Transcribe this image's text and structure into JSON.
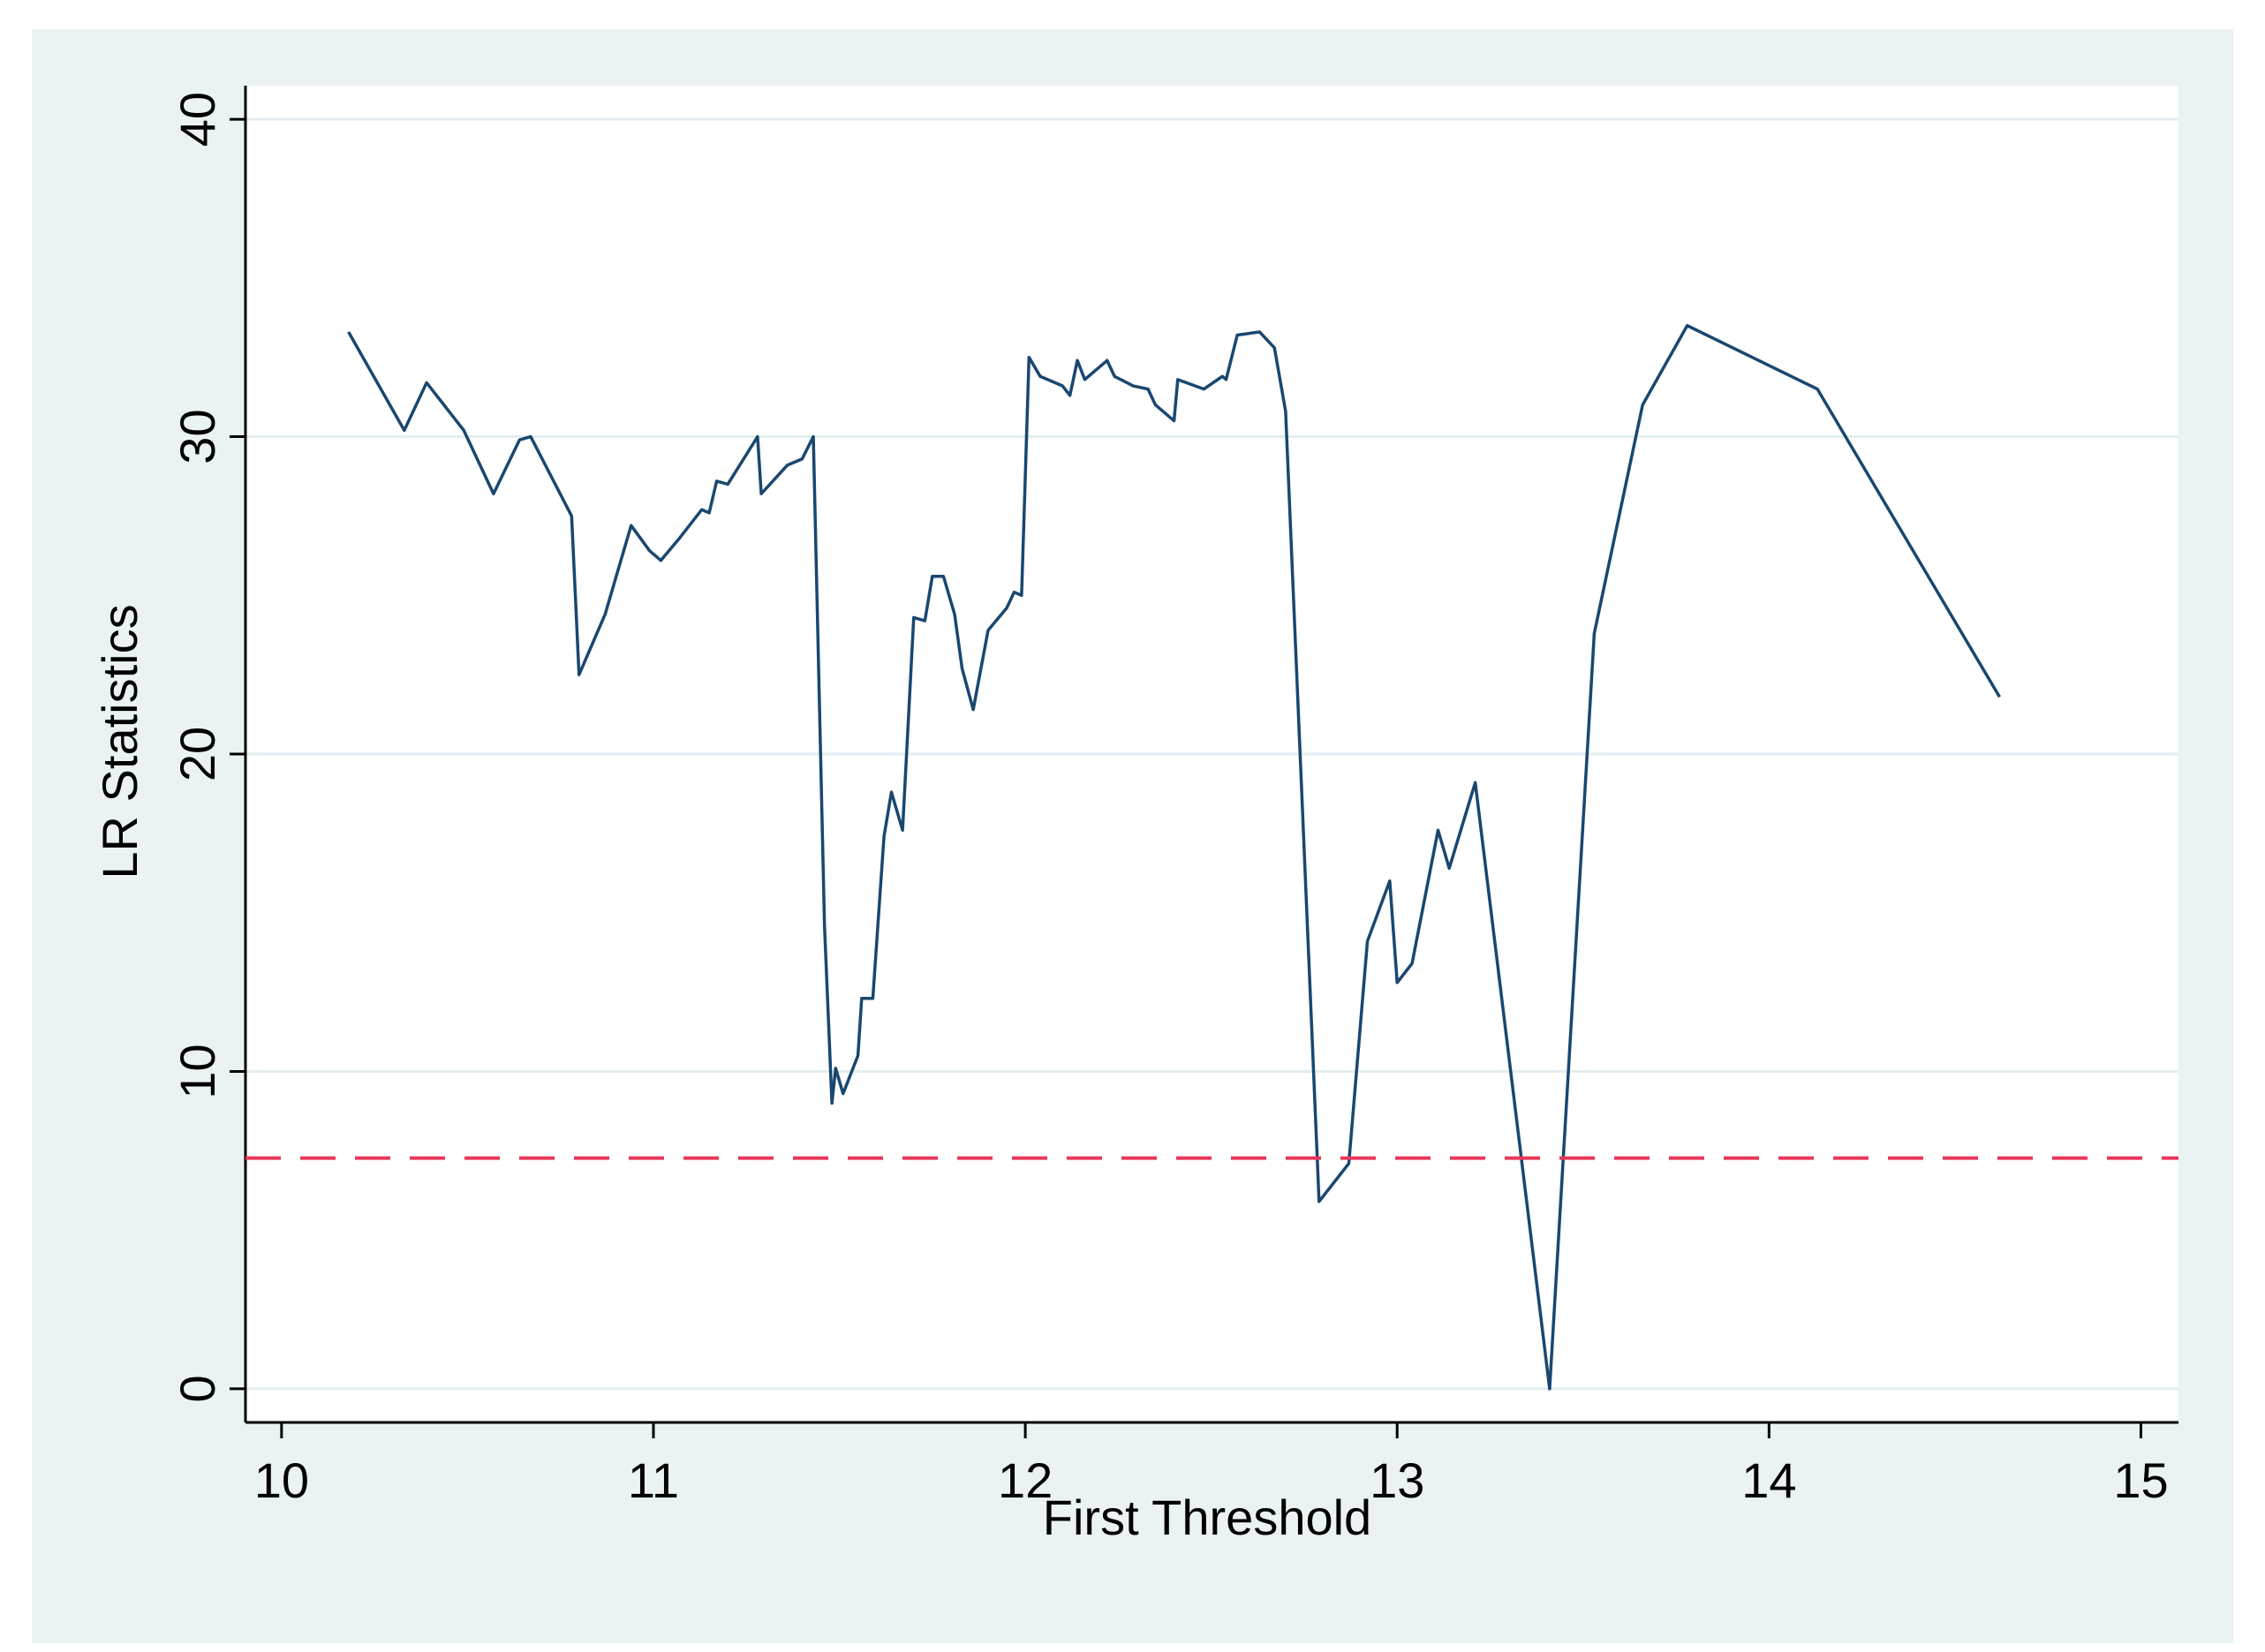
{
  "chart_data": {
    "type": "line",
    "xlabel": "First Threshold",
    "ylabel": "LR Statistics",
    "x": [
      10.18,
      10.33,
      10.39,
      10.49,
      10.57,
      10.64,
      10.67,
      10.78,
      10.8,
      10.87,
      10.94,
      10.99,
      11.02,
      11.07,
      11.13,
      11.15,
      11.17,
      11.2,
      11.28,
      11.29,
      11.36,
      11.4,
      11.43,
      11.46,
      11.48,
      11.49,
      11.51,
      11.55,
      11.56,
      11.59,
      11.62,
      11.64,
      11.67,
      11.7,
      11.73,
      11.75,
      11.78,
      11.81,
      11.83,
      11.86,
      11.9,
      11.95,
      11.97,
      11.99,
      12.01,
      12.04,
      12.1,
      12.12,
      12.14,
      12.16,
      12.22,
      12.24,
      12.29,
      12.33,
      12.35,
      12.4,
      12.41,
      12.48,
      12.53,
      12.54,
      12.57,
      12.63,
      12.67,
      12.7,
      12.79,
      12.87,
      12.92,
      12.98,
      13.0,
      13.04,
      13.11,
      13.14,
      13.21,
      13.41,
      13.53,
      13.66,
      13.78,
      14.13,
      14.62
    ],
    "series": [
      {
        "name": "LR",
        "color": "#1a476f",
        "values": [
          33.3,
          30.2,
          31.7,
          30.2,
          28.2,
          29.9,
          30.0,
          27.5,
          22.5,
          24.4,
          27.2,
          26.4,
          26.1,
          26.8,
          27.7,
          27.6,
          28.6,
          28.5,
          30.0,
          28.2,
          29.1,
          29.3,
          30.0,
          14.6,
          9.0,
          10.1,
          9.3,
          10.5,
          12.3,
          12.3,
          17.4,
          18.8,
          17.6,
          24.3,
          24.2,
          25.6,
          25.6,
          24.4,
          22.7,
          21.4,
          23.9,
          24.6,
          25.1,
          25.0,
          32.5,
          31.9,
          31.6,
          31.3,
          32.4,
          31.8,
          32.4,
          31.9,
          31.6,
          31.5,
          31.0,
          30.5,
          31.8,
          31.5,
          31.9,
          31.8,
          33.2,
          33.3,
          32.8,
          30.8,
          5.9,
          7.1,
          14.1,
          16.0,
          12.8,
          13.4,
          17.6,
          16.4,
          19.1,
          0,
          23.8,
          31.0,
          33.5,
          31.5,
          21.8
        ]
      }
    ],
    "reference_line": {
      "value": 7.27,
      "color": "#e8385a"
    },
    "xlim": [
      9.903,
      15.101
    ],
    "xticks": [
      10,
      11,
      12,
      13,
      14,
      15
    ],
    "ylim": [
      -1.06,
      41.06
    ],
    "yticks": [
      0,
      10,
      20,
      30,
      40
    ],
    "grid": true
  }
}
